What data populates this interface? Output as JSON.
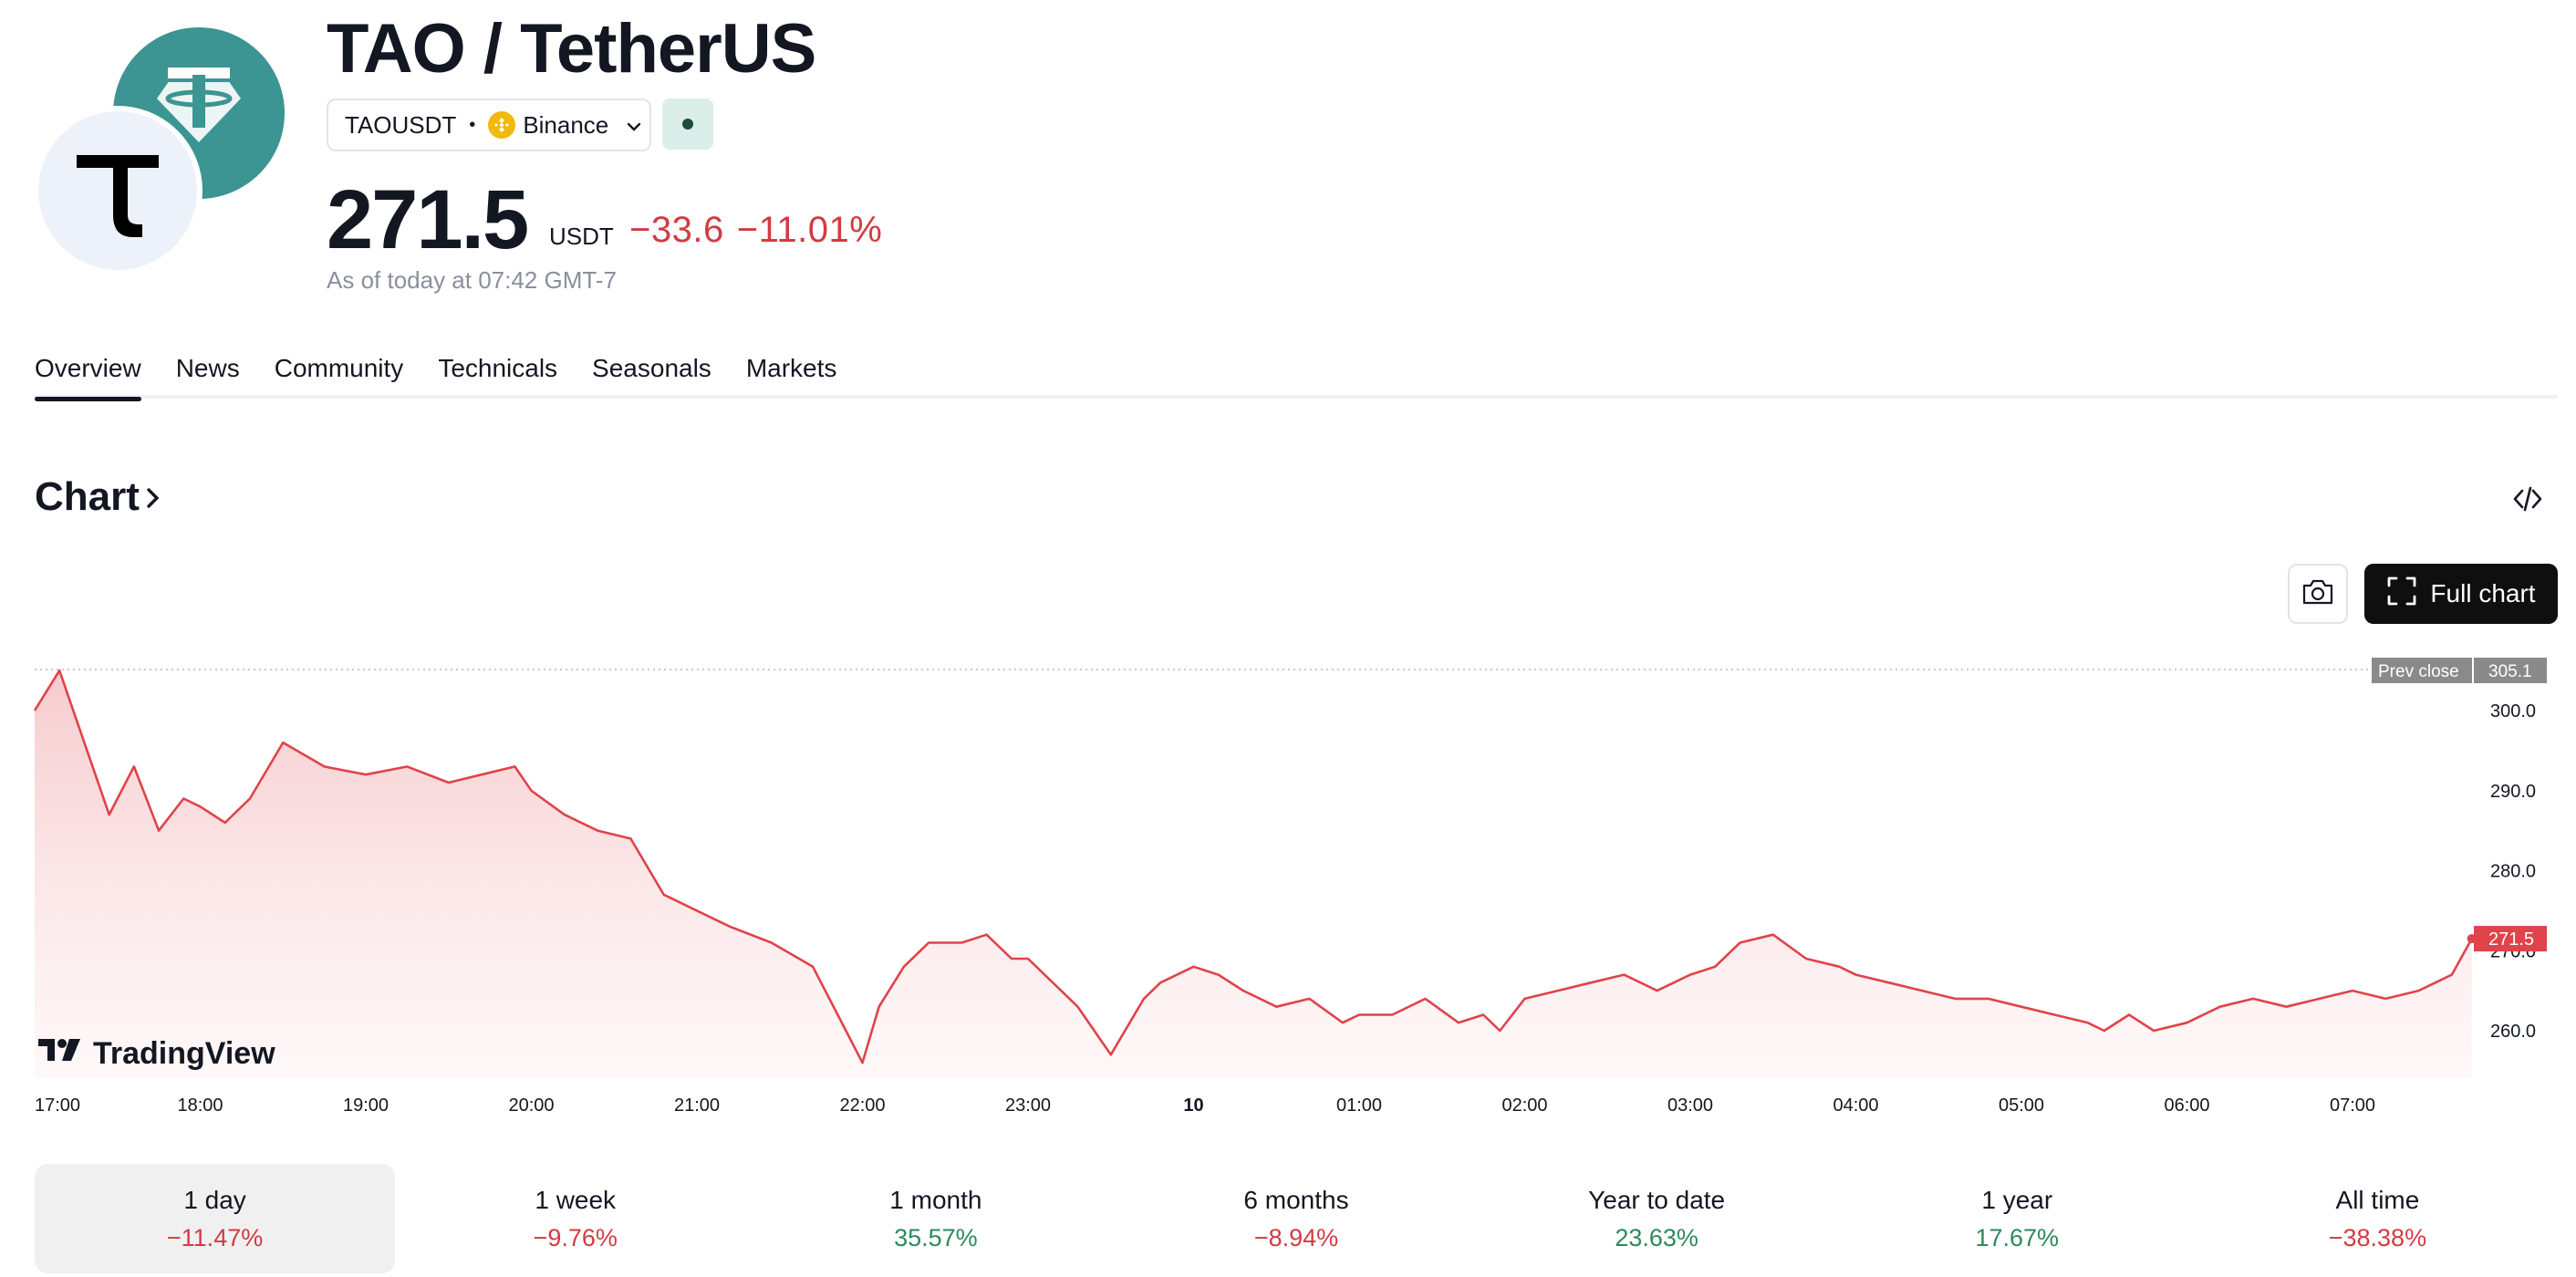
{
  "header": {
    "title": "TAO / TetherUS",
    "symbol": "TAOUSDT",
    "exchange": "Binance",
    "price": "271.5",
    "currency": "USDT",
    "change_abs": "−33.6",
    "change_pct": "−11.01%",
    "as_of": "As of today at 07:42 GMT-7"
  },
  "tabs": [
    "Overview",
    "News",
    "Community",
    "Technicals",
    "Seasonals",
    "Markets"
  ],
  "chart_section": {
    "title": "Chart",
    "full_chart_label": "Full chart",
    "brand": "TradingView"
  },
  "colors": {
    "line": "#e0434a",
    "negative": "#d23b41",
    "positive": "#2b8a5a",
    "usdt_logo": "#3c9592"
  },
  "chart_data": {
    "type": "area",
    "x_ticks": [
      "17:00",
      "18:00",
      "19:00",
      "20:00",
      "21:00",
      "22:00",
      "23:00",
      "10",
      "01:00",
      "02:00",
      "03:00",
      "04:00",
      "05:00",
      "06:00",
      "07:00"
    ],
    "y_ticks": [
      "300.0",
      "290.0",
      "280.0",
      "270.0",
      "260.0"
    ],
    "ylim": [
      254,
      306
    ],
    "prev_close_label": "Prev close",
    "prev_close": "305.1",
    "last_price": "271.5",
    "x_hours": [
      0,
      0.15,
      0.3,
      0.45,
      0.6,
      0.75,
      0.9,
      1.0,
      1.15,
      1.3,
      1.5,
      1.75,
      2.0,
      2.25,
      2.5,
      2.7,
      2.9,
      3.0,
      3.2,
      3.4,
      3.6,
      3.8,
      4.0,
      4.2,
      4.45,
      4.7,
      4.9,
      5.0,
      5.1,
      5.25,
      5.4,
      5.6,
      5.75,
      5.9,
      6.0,
      6.15,
      6.3,
      6.5,
      6.7,
      6.8,
      7.0,
      7.15,
      7.3,
      7.5,
      7.7,
      7.9,
      8.0,
      8.2,
      8.4,
      8.6,
      8.75,
      8.85,
      9.0,
      9.2,
      9.4,
      9.6,
      9.8,
      10.0,
      10.15,
      10.3,
      10.5,
      10.7,
      10.9,
      11.0,
      11.2,
      11.4,
      11.6,
      11.8,
      12.0,
      12.2,
      12.4,
      12.5,
      12.65,
      12.8,
      13.0,
      13.2,
      13.4,
      13.6,
      13.8,
      14.0,
      14.2,
      14.4,
      14.6,
      14.72
    ],
    "values": [
      300,
      305,
      296,
      287,
      293,
      285,
      289,
      288,
      286,
      289,
      296,
      293,
      292,
      293,
      291,
      292,
      293,
      290,
      287,
      285,
      284,
      277,
      275,
      273,
      271,
      268,
      260,
      256,
      263,
      268,
      271,
      271,
      272,
      269,
      269,
      266,
      263,
      257,
      264,
      266,
      268,
      267,
      265,
      263,
      264,
      261,
      262,
      262,
      264,
      261,
      262,
      260,
      264,
      265,
      266,
      267,
      265,
      267,
      268,
      271,
      272,
      269,
      268,
      267,
      266,
      265,
      264,
      264,
      263,
      262,
      261,
      260,
      262,
      260,
      261,
      263,
      264,
      263,
      264,
      265,
      264,
      265,
      267,
      271.5
    ]
  },
  "periods": [
    {
      "label": "1 day",
      "value": "−11.47%",
      "sign": "neg"
    },
    {
      "label": "1 week",
      "value": "−9.76%",
      "sign": "neg"
    },
    {
      "label": "1 month",
      "value": "35.57%",
      "sign": "pos"
    },
    {
      "label": "6 months",
      "value": "−8.94%",
      "sign": "neg"
    },
    {
      "label": "Year to date",
      "value": "23.63%",
      "sign": "pos"
    },
    {
      "label": "1 year",
      "value": "17.67%",
      "sign": "pos"
    },
    {
      "label": "All time",
      "value": "−38.38%",
      "sign": "neg"
    }
  ]
}
